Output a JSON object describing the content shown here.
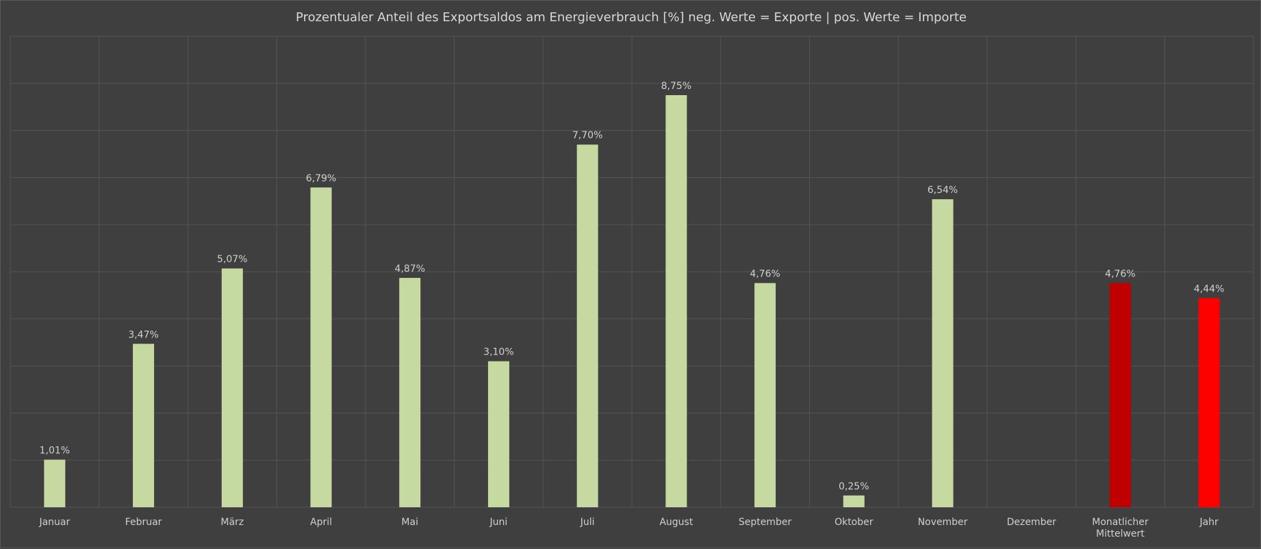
{
  "chart_data": {
    "type": "bar",
    "title": "Prozentualer Anteil des Exportsaldos am Energieverbrauch [%] neg. Werte = Exporte | pos. Werte = Importe",
    "xlabel": "",
    "ylabel": "",
    "categories": [
      "Januar",
      "Februar",
      "März",
      "April",
      "Mai",
      "Juni",
      "Juli",
      "August",
      "September",
      "Oktober",
      "November",
      "Dezember",
      "Monatlicher Mittelwert",
      "Jahr"
    ],
    "values": [
      1.01,
      3.47,
      5.07,
      6.79,
      4.87,
      3.1,
      7.7,
      8.75,
      4.76,
      0.25,
      6.54,
      null,
      4.76,
      4.44
    ],
    "value_labels": [
      "1,01%",
      "3,47%",
      "5,07%",
      "6,79%",
      "4,87%",
      "3,10%",
      "7,70%",
      "8,75%",
      "4,76%",
      "0,25%",
      "6,54%",
      "",
      "4,76%",
      "4,44%"
    ],
    "bar_colors": [
      "#c5d9a0",
      "#c5d9a0",
      "#c5d9a0",
      "#c5d9a0",
      "#c5d9a0",
      "#c5d9a0",
      "#c5d9a0",
      "#c5d9a0",
      "#c5d9a0",
      "#c5d9a0",
      "#c5d9a0",
      "#c5d9a0",
      "#c00000",
      "#ff0000"
    ],
    "ylim": [
      0,
      10
    ],
    "grid": true,
    "legend": "none"
  },
  "colors": {
    "background": "#3f3f3f",
    "grid": "#555555",
    "text": "#d0d0d0"
  }
}
